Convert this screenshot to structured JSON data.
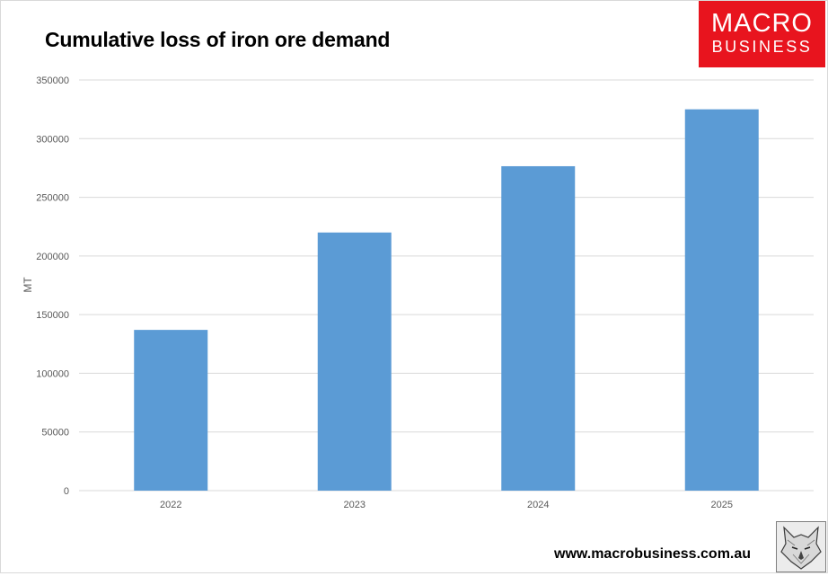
{
  "brand": {
    "logo_line1": "MACRO",
    "logo_line2": "BUSINESS",
    "logo_color": "#e8141e",
    "footer_url": "www.macrobusiness.com.au",
    "wolf_logo_icon": "wolf-head-sketch-icon"
  },
  "chart_data": {
    "type": "bar",
    "title": "Cumulative loss of iron ore demand",
    "xlabel": "",
    "ylabel": "MT",
    "categories": [
      "2022",
      "2023",
      "2024",
      "2025"
    ],
    "series": [
      {
        "values": [
          137000,
          220000,
          276500,
          325000
        ]
      }
    ],
    "ylim": [
      0,
      350000
    ],
    "yticks": [
      0,
      50000,
      100000,
      150000,
      200000,
      250000,
      300000,
      350000
    ],
    "ytick_labels": [
      "0",
      "50000",
      "100000",
      "150000",
      "200000",
      "250000",
      "300000",
      "350000"
    ],
    "grid": true,
    "legend": "none",
    "colors": {
      "bar": "#5b9bd5",
      "grid": "#d9d9d9",
      "tick_text": "#595959"
    }
  }
}
